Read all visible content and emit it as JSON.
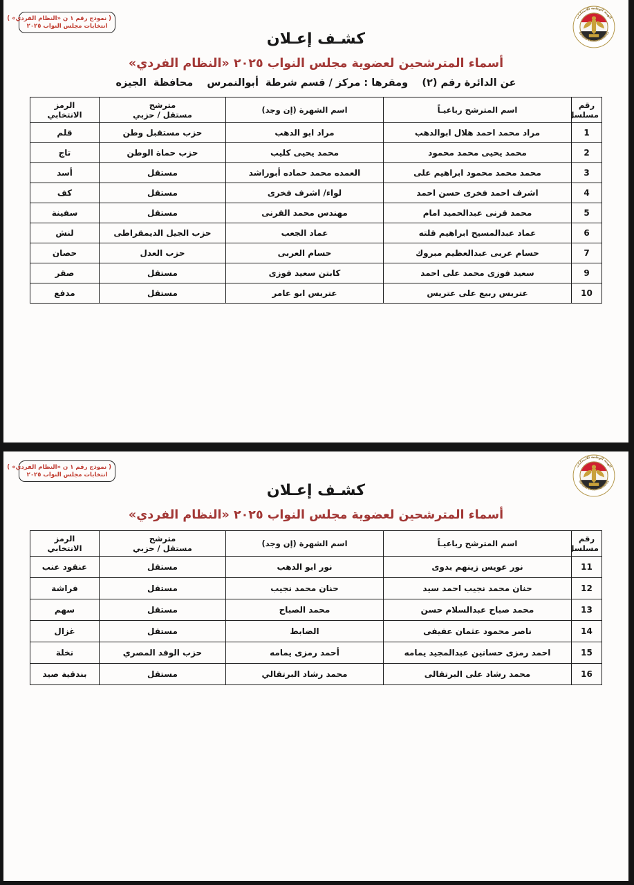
{
  "colors": {
    "ink": "#1b1b1b",
    "subtitle_red": "#a23735",
    "stamp_red": "#bf3b32",
    "flag_red": "#cf2030",
    "eagle_gold": "#c9a13b",
    "frame_black": "#141414"
  },
  "logo": {
    "name": "شعار الهيئة الوطنية للانتخابات",
    "ring_text_top": "الهيئة الوطنية للانتخابات",
    "ring_text_bottom": "National Election Authority"
  },
  "pages": [
    {
      "stamp": {
        "line1": "( نموذج رقم ١ ن «النظام الفردي» )",
        "line2": "انتخابات مجلس النواب ٢٠٢٥"
      },
      "title": "كشـف إعـلان",
      "subtitle": "أسماء المترشحين لعضوية مجلس النواب ٢٠٢٥ «النظام الفردي»",
      "district_line": "عن الدائرة رقم (٢)    ومقرها : مركز / قسم شرطة  أبوالنمرس    محافظة  الجيزه",
      "table": {
        "headers": [
          "رقم\nمسلسل",
          "اسم المترشح رباعيـاً",
          "اسم الشهرة (إن وجد)",
          "مترشح\nمستقل / حزبي",
          "الرمز\nالانتخابي"
        ],
        "rows": [
          [
            "1",
            "مراد محمد احمد هلال ابوالدهب",
            "مراد ابو الدهب",
            "حزب مستقبل وطن",
            "قلم"
          ],
          [
            "2",
            "محمد يحيى محمد محمود",
            "محمد يحيى كليب",
            "حزب حماة الوطن",
            "تاج"
          ],
          [
            "3",
            "محمد محمد محمود ابراهيم على",
            "العمده محمد حماده أبوراشد",
            "مستقل",
            "أسد"
          ],
          [
            "4",
            "اشرف احمد فخرى حسن احمد",
            "لواء/ اشرف فخرى",
            "مستقل",
            "كف"
          ],
          [
            "5",
            "محمد قرنى عبدالحميد امام",
            "مهندس محمد القرنى",
            "مستقل",
            "سفينة"
          ],
          [
            "6",
            "عماد عبدالمسيح ابراهيم قلته",
            "عماد الجعب",
            "حزب الجيل الديمقراطى",
            "لنش"
          ],
          [
            "7",
            "حسام عربى عبدالعظيم مبروك",
            "حسام العربى",
            "حزب العدل",
            "حصان"
          ],
          [
            "9",
            "سعيد فوزى محمد على احمد",
            "كابتن سعيد فوزى",
            "مستقل",
            "صقر"
          ],
          [
            "10",
            "عتريس ربيع على عتريس",
            "عتريس ابو عامر",
            "مستقل",
            "مدفع"
          ]
        ]
      }
    },
    {
      "stamp": {
        "line1": "( نموذج رقم ١ ن «النظام الفردي» )",
        "line2": "انتخابات مجلس النواب ٢٠٢٥"
      },
      "title": "كشـف إعـلان",
      "subtitle": "أسماء المترشحين لعضوية مجلس النواب ٢٠٢٥ «النظام الفردي»",
      "table": {
        "headers": [
          "رقم\nمسلسل",
          "اسم المترشح رباعيـاً",
          "اسم الشهرة (إن وجد)",
          "مترشح\nمستقل / حزبي",
          "الرمز\nالانتخابي"
        ],
        "rows": [
          [
            "11",
            "نور عويس زينهم بدوى",
            "نور ابو الدهب",
            "مستقل",
            "عنقود عنب"
          ],
          [
            "12",
            "حنان محمد نجيب احمد سيد",
            "حنان محمد نجيب",
            "مستقل",
            "فراشة"
          ],
          [
            "13",
            "محمد صباح عبدالسلام حسن",
            "محمد الصباح",
            "مستقل",
            "سهم"
          ],
          [
            "14",
            "ناصر محمود عثمان عفيفى",
            "الضابط",
            "مستقل",
            "غزال"
          ],
          [
            "15",
            "احمد رمزى حسانين عبدالمجيد يمامه",
            "أحمد رمزى يمامه",
            "حزب الوفد المصري",
            "نخلة"
          ],
          [
            "16",
            "محمد رشاد على البرتقالى",
            "محمد رشاد البرتقالي",
            "مستقل",
            "بندقية صيد"
          ]
        ]
      }
    }
  ]
}
